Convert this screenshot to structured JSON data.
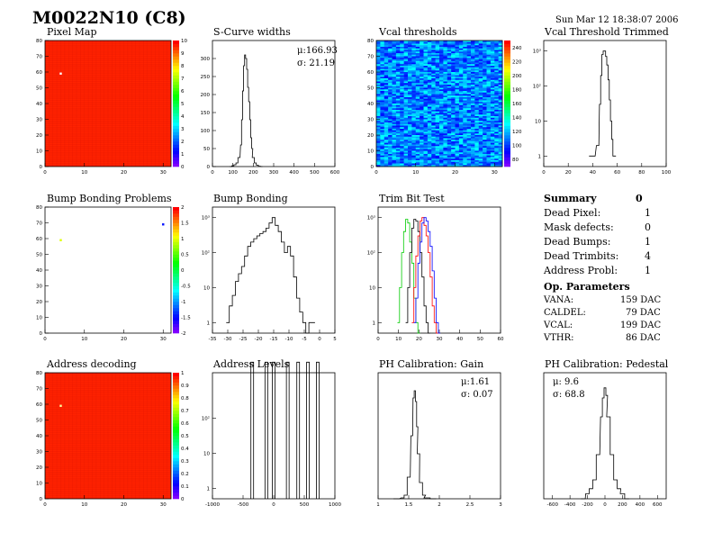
{
  "title": "M0022N10 (C8)",
  "date": "Sun Mar 12 18:38:07 2006",
  "chart_data": [
    {
      "id": "pixel_map",
      "type": "heatmap",
      "title": "Pixel Map",
      "xlim": [
        0,
        32
      ],
      "ylim": [
        0,
        80
      ],
      "zlim": [
        0,
        10
      ],
      "xticks": [
        "0",
        "10",
        "20",
        "30"
      ],
      "yticks": [
        "0",
        "10",
        "20",
        "30",
        "40",
        "50",
        "60",
        "70",
        "80"
      ],
      "zticks": [
        "0",
        "1",
        "2",
        "3",
        "4",
        "5",
        "6",
        "7",
        "8",
        "9",
        "10"
      ],
      "fill_value": 10,
      "points": [
        {
          "x": 4,
          "y": 59,
          "value": 0
        }
      ]
    },
    {
      "id": "scurve_widths",
      "type": "line",
      "title": "S-Curve widths",
      "xlim": [
        0,
        600
      ],
      "ylim": [
        0,
        350
      ],
      "xticks": [
        "0",
        "100",
        "200",
        "300",
        "400",
        "500",
        "600"
      ],
      "yticks": [
        "0",
        "50",
        "100",
        "150",
        "200",
        "250",
        "300"
      ],
      "stats": {
        "mean": "μ:166.93",
        "sigma": "σ: 21.19"
      },
      "x": [
        90,
        100,
        110,
        120,
        130,
        140,
        145,
        150,
        155,
        160,
        165,
        170,
        175,
        180,
        185,
        190,
        195,
        200,
        210,
        220,
        230,
        240
      ],
      "y": [
        0,
        2,
        5,
        10,
        25,
        60,
        130,
        210,
        280,
        310,
        300,
        270,
        220,
        180,
        130,
        80,
        50,
        25,
        10,
        4,
        1,
        0
      ]
    },
    {
      "id": "vcal_thresholds",
      "type": "heatmap",
      "title": "Vcal thresholds",
      "xlim": [
        0,
        32
      ],
      "ylim": [
        0,
        80
      ],
      "zlim": [
        70,
        250
      ],
      "xticks": [
        "0",
        "10",
        "20",
        "30"
      ],
      "yticks": [
        "0",
        "10",
        "20",
        "30",
        "40",
        "50",
        "60",
        "70",
        "80"
      ],
      "zticks": [
        "80",
        "100",
        "120",
        "140",
        "160",
        "180",
        "200",
        "220",
        "240"
      ]
    },
    {
      "id": "vcal_trimmed",
      "type": "line",
      "title": "Vcal Threshold Trimmed",
      "xlim": [
        0,
        100
      ],
      "ylog": true,
      "ylim": [
        0.5,
        2000
      ],
      "xticks": [
        "0",
        "20",
        "40",
        "60",
        "80",
        "100"
      ],
      "yticks": [
        "1",
        "10",
        "10²",
        "10³"
      ],
      "x": [
        38,
        40,
        44,
        46,
        47,
        48,
        49,
        50,
        51,
        52,
        53,
        54,
        55,
        56,
        57,
        58
      ],
      "y": [
        1,
        1,
        2,
        30,
        200,
        800,
        1000,
        1000,
        700,
        400,
        150,
        40,
        10,
        3,
        1,
        1
      ]
    },
    {
      "id": "bump_problems",
      "type": "heatmap",
      "title": "Bump Bonding Problems",
      "xlim": [
        0,
        32
      ],
      "ylim": [
        0,
        80
      ],
      "zlim": [
        -2,
        2
      ],
      "xticks": [
        "0",
        "10",
        "20",
        "30"
      ],
      "yticks": [
        "0",
        "10",
        "20",
        "30",
        "40",
        "50",
        "60",
        "70",
        "80"
      ],
      "zticks": [
        "-2",
        "-1.5",
        "-1",
        "-0.5",
        "0",
        "0.5",
        "1",
        "1.5",
        "2"
      ],
      "points": [
        {
          "x": 4,
          "y": 59,
          "value": 1
        },
        {
          "x": 30,
          "y": 69,
          "value": -1.5
        }
      ]
    },
    {
      "id": "bump_bonding",
      "type": "line",
      "title": "Bump Bonding",
      "xlim": [
        -35,
        5
      ],
      "ylog": true,
      "ylim": [
        0.5,
        2000
      ],
      "xticks": [
        "-35",
        "-30",
        "-25",
        "-20",
        "-15",
        "-10",
        "-5",
        "0",
        "5"
      ],
      "yticks": [
        "1",
        "10",
        "10²",
        "10³"
      ],
      "x": [
        -30,
        -29,
        -28,
        -27,
        -26,
        -25,
        -24,
        -23,
        -22,
        -21,
        -20,
        -19,
        -18,
        -17,
        -16,
        -15,
        -14,
        -13,
        -12,
        -11,
        -10,
        -9,
        -8,
        -7,
        -6,
        -5,
        -4,
        -3,
        -2
      ],
      "y": [
        1,
        3,
        6,
        15,
        25,
        40,
        80,
        150,
        200,
        250,
        300,
        350,
        400,
        500,
        700,
        1000,
        600,
        400,
        200,
        100,
        150,
        80,
        20,
        5,
        2,
        1,
        0.5,
        1,
        1
      ]
    },
    {
      "id": "trim_bit_test",
      "type": "line",
      "title": "Trim Bit Test",
      "xlim": [
        0,
        60
      ],
      "ylog": true,
      "ylim": [
        0.5,
        2000
      ],
      "xticks": [
        "0",
        "10",
        "20",
        "30",
        "40",
        "50",
        "60"
      ],
      "yticks": [
        "1",
        "10",
        "10²",
        "10³"
      ],
      "series": [
        {
          "color": "#00cc00",
          "x": [
            10,
            11,
            12,
            13,
            14,
            15,
            16,
            17,
            18,
            19,
            20
          ],
          "y": [
            1,
            10,
            100,
            400,
            900,
            700,
            200,
            50,
            5,
            1,
            0.5
          ]
        },
        {
          "color": "#000000",
          "x": [
            14,
            15,
            16,
            17,
            18,
            19,
            20,
            21,
            22,
            23,
            24,
            25
          ],
          "y": [
            1,
            10,
            100,
            500,
            900,
            800,
            400,
            100,
            20,
            3,
            1,
            0.5
          ]
        },
        {
          "color": "#ff0000",
          "x": [
            17,
            18,
            19,
            20,
            21,
            22,
            23,
            24,
            25,
            26,
            27,
            28,
            29
          ],
          "y": [
            1,
            10,
            80,
            300,
            800,
            1000,
            600,
            300,
            100,
            20,
            3,
            1,
            0.5
          ]
        },
        {
          "color": "#0000ff",
          "x": [
            18,
            19,
            20,
            21,
            22,
            23,
            24,
            25,
            26,
            27,
            28,
            29,
            30
          ],
          "y": [
            1,
            5,
            50,
            200,
            700,
            1000,
            800,
            400,
            150,
            30,
            5,
            1,
            0.5
          ]
        }
      ]
    },
    {
      "id": "address_decoding",
      "type": "heatmap",
      "title": "Address decoding",
      "xlim": [
        0,
        32
      ],
      "ylim": [
        0,
        80
      ],
      "zlim": [
        0,
        1
      ],
      "xticks": [
        "0",
        "10",
        "20",
        "30"
      ],
      "yticks": [
        "0",
        "10",
        "20",
        "30",
        "40",
        "50",
        "60",
        "70",
        "80"
      ],
      "zticks": [
        "0",
        "0.1",
        "0.2",
        "0.3",
        "0.4",
        "0.5",
        "0.6",
        "0.7",
        "0.8",
        "0.9",
        "1"
      ],
      "fill_value": 1,
      "points": [
        {
          "x": 4,
          "y": 59,
          "value": 0.5
        }
      ]
    },
    {
      "id": "address_levels",
      "type": "line",
      "title": "Address Levels",
      "xlim": [
        -1000,
        1000
      ],
      "ylog": true,
      "ylim": [
        0.5,
        2000
      ],
      "xticks": [
        "-1000",
        "-500",
        "0",
        "500",
        "1000"
      ],
      "yticks": [
        "1",
        "10",
        "10²"
      ],
      "peaks": [
        -350,
        -120,
        0,
        230,
        400,
        560,
        720
      ],
      "peak_height": 4000
    },
    {
      "id": "ph_gain",
      "type": "line",
      "title": "PH Calibration: Gain",
      "xlim": [
        1,
        3
      ],
      "ylim": [
        0,
        700
      ],
      "xticks": [
        "1",
        "1.5",
        "2",
        "2.5",
        "3"
      ],
      "yticks": [],
      "stats": {
        "mean": "μ:1.61",
        "sigma": "σ: 0.07"
      },
      "x": [
        1.3,
        1.4,
        1.45,
        1.5,
        1.55,
        1.58,
        1.6,
        1.62,
        1.64,
        1.66,
        1.7,
        1.75,
        1.8,
        1.9
      ],
      "y": [
        0,
        5,
        20,
        120,
        350,
        560,
        600,
        540,
        400,
        250,
        90,
        20,
        5,
        0
      ]
    },
    {
      "id": "ph_pedestal",
      "type": "line",
      "title": "PH Calibration: Pedestal",
      "xlim": [
        -700,
        700
      ],
      "ylim": [
        0,
        100
      ],
      "xticks": [
        "-600",
        "-400",
        "-200",
        "0",
        "200",
        "400",
        "600"
      ],
      "yticks": [],
      "stats": {
        "mean": "μ: 9.6",
        "sigma": "σ: 68.8"
      },
      "x": [
        -250,
        -200,
        -160,
        -120,
        -80,
        -40,
        -20,
        0,
        20,
        40,
        80,
        120,
        160,
        200,
        250
      ],
      "y": [
        0,
        4,
        8,
        15,
        35,
        65,
        80,
        88,
        82,
        65,
        35,
        15,
        8,
        4,
        0
      ]
    }
  ],
  "summary": {
    "heading": "Summary",
    "heading_value": "0",
    "rows": [
      {
        "label": "Dead Pixel:",
        "value": "1"
      },
      {
        "label": "Mask defects:",
        "value": "0"
      },
      {
        "label": "Dead Bumps:",
        "value": "1"
      },
      {
        "label": "Dead Trimbits:",
        "value": "4"
      },
      {
        "label": "Address Probl:",
        "value": "1"
      }
    ],
    "op_heading": "Op. Parameters",
    "op_rows": [
      {
        "label": "VANA:",
        "value": "159 DAC"
      },
      {
        "label": "CALDEL:",
        "value": "79 DAC"
      },
      {
        "label": "VCAL:",
        "value": "199 DAC"
      },
      {
        "label": "VTHR:",
        "value": "86 DAC"
      }
    ]
  }
}
